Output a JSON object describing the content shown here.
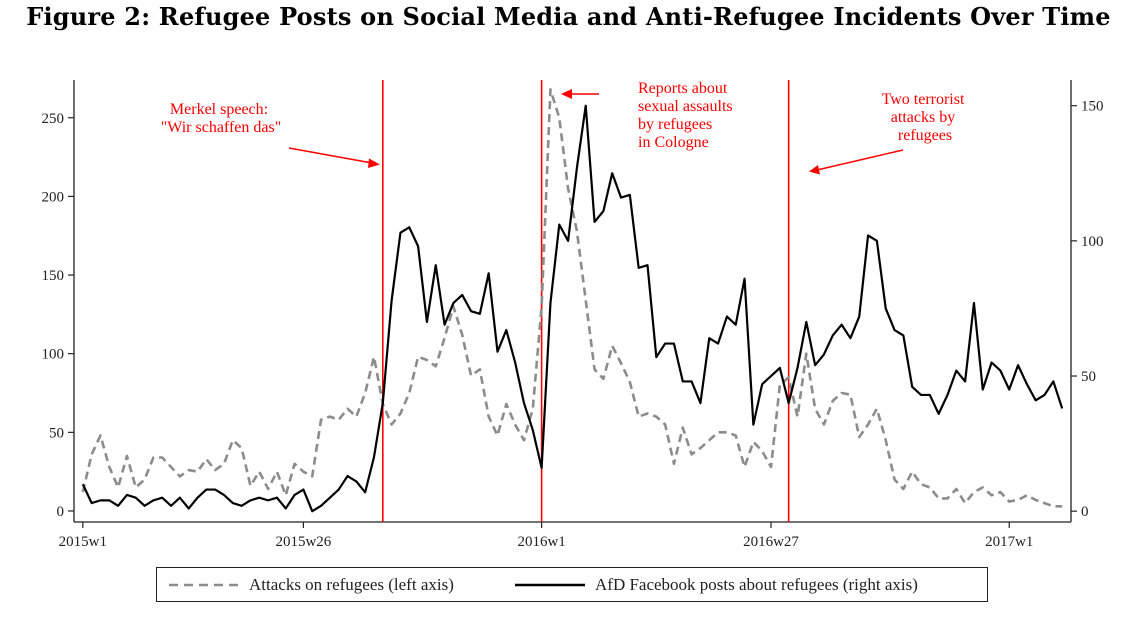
{
  "title": "Figure 2: Refugee Posts on Social Media and Anti-Refugee Incidents Over Time",
  "chart_data": {
    "type": "line",
    "title": "Figure 2: Refugee Posts on Social Media and Anti-Refugee Incidents Over Time",
    "xlabel": "",
    "ylabel_left": "",
    "ylabel_right": "",
    "x_ticks": [
      {
        "label": "2015w1",
        "week": 0
      },
      {
        "label": "2015w26",
        "week": 25
      },
      {
        "label": "2016w1",
        "week": 52
      },
      {
        "label": "2016w27",
        "week": 78
      },
      {
        "label": "2017w1",
        "week": 105
      }
    ],
    "xlim": [
      -1,
      112
    ],
    "left_axis": {
      "ylim": [
        -7,
        274
      ],
      "ticks": [
        0,
        50,
        100,
        150,
        200,
        250
      ]
    },
    "right_axis": {
      "ylim": [
        -4,
        159.5
      ],
      "ticks": [
        0,
        50,
        100,
        150
      ]
    },
    "grid": false,
    "legend_position": "bottom",
    "series": [
      {
        "name": "Attacks on refugees (left axis)",
        "axis": "left",
        "color": "#8c8c8c",
        "dash": "dashed",
        "values": [
          12,
          36,
          48,
          28,
          15,
          35,
          15,
          20,
          34,
          34,
          28,
          22,
          26,
          25,
          33,
          26,
          30,
          45,
          40,
          16,
          25,
          14,
          25,
          10,
          30,
          25,
          22,
          58,
          60,
          58,
          65,
          60,
          75,
          98,
          68,
          55,
          62,
          75,
          98,
          96,
          92,
          110,
          130,
          112,
          86,
          90,
          60,
          48,
          68,
          55,
          45,
          65,
          130,
          268,
          250,
          205,
          178,
          134,
          90,
          84,
          105,
          94,
          82,
          60,
          62,
          60,
          55,
          30,
          53,
          36,
          40,
          45,
          50,
          50,
          48,
          28,
          44,
          38,
          28,
          80,
          85,
          60,
          100,
          65,
          55,
          70,
          75,
          74,
          47,
          55,
          65,
          45,
          20,
          14,
          25,
          17,
          15,
          8,
          8,
          14,
          5,
          12,
          15,
          10,
          12,
          6,
          7,
          10,
          7,
          5,
          3,
          3
        ]
      },
      {
        "name": "AfD Facebook posts about refugees (right axis)",
        "axis": "right",
        "color": "#000000",
        "dash": "solid",
        "values": [
          10,
          3,
          4,
          4,
          2,
          6,
          5,
          2,
          4,
          5,
          2,
          5,
          1,
          5,
          8,
          8,
          6,
          3,
          2,
          4,
          5,
          4,
          5,
          1,
          6,
          8,
          0,
          2,
          5,
          8,
          13,
          11,
          7,
          20,
          40,
          78,
          103,
          105,
          98,
          70,
          91,
          69,
          77,
          80,
          74,
          73,
          88,
          59,
          67,
          55,
          40,
          30,
          16,
          77,
          106,
          100,
          127,
          150,
          107,
          111,
          125,
          116,
          117,
          90,
          91,
          57,
          62,
          62,
          48,
          48,
          40,
          64,
          62,
          72,
          69,
          86,
          32,
          47,
          50,
          53,
          40,
          53,
          70,
          54,
          58,
          65,
          69,
          64,
          72,
          102,
          100,
          75,
          67,
          65,
          46,
          43,
          43,
          36,
          43,
          52,
          48,
          77,
          45,
          55,
          52,
          45,
          54,
          47,
          41,
          43,
          48,
          38
        ]
      }
    ],
    "vertical_lines": [
      {
        "week": 34,
        "color": "#ff0000"
      },
      {
        "week": 52,
        "color": "#ff0000"
      },
      {
        "week": 80,
        "color": "#ff0000"
      }
    ],
    "annotations": [
      {
        "lines": [
          "Merkel speech:",
          "\"Wir schaffen das\""
        ],
        "color": "#ff0000"
      },
      {
        "lines": [
          "Reports about",
          "sexual assaults",
          "by refugees",
          "in Cologne"
        ],
        "color": "#ff0000"
      },
      {
        "lines": [
          "Two terrorist",
          "attacks by",
          "refugees"
        ],
        "color": "#ff0000"
      }
    ]
  },
  "legend": {
    "items": [
      {
        "label": "Attacks on refugees (left axis)"
      },
      {
        "label": "AfD Facebook posts about refugees (right axis)"
      }
    ]
  }
}
